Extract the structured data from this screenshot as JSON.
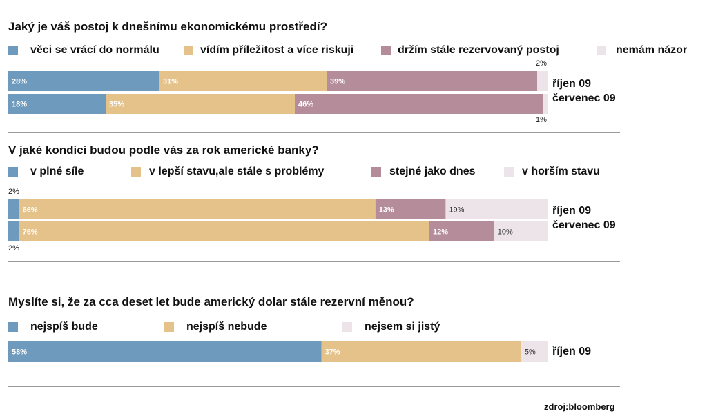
{
  "colors": {
    "blue": "#6e9bbd",
    "tan": "#e4c289",
    "mauve": "#b48c9a",
    "light": "#ece4e8"
  },
  "chart_data": [
    {
      "type": "bar",
      "orientation": "horizontal",
      "stacked": true,
      "title": "Jaký je váš postoj  k dnešnímu ekonomickému prostředí?",
      "legend": [
        "věci se vrácí do normálu",
        "vídím příležitost a více riskuji",
        "držím stále rezervovaný postoj",
        "nemám názor"
      ],
      "categories": [
        "říjen 09",
        "červenec 09"
      ],
      "series": [
        {
          "name": "věci se vrácí do normálu",
          "values": [
            28,
            18
          ],
          "labels": [
            "28%",
            "18%"
          ]
        },
        {
          "name": "vídím příležitost a více riskuji",
          "values": [
            31,
            35
          ],
          "labels": [
            "31%",
            "35%"
          ]
        },
        {
          "name": "držím stále rezervovaný postoj",
          "values": [
            39,
            46
          ],
          "labels": [
            "39%",
            "46%"
          ]
        },
        {
          "name": "nemám názor",
          "values": [
            2,
            1
          ],
          "labels": [
            "2%",
            "1%"
          ]
        }
      ]
    },
    {
      "type": "bar",
      "orientation": "horizontal",
      "stacked": true,
      "title": "V jaké kondici budou podle vás za rok americké banky?",
      "legend": [
        "v plné síle",
        "v lepší stavu,ale stále s problémy",
        "stejné jako dnes",
        "v horším stavu"
      ],
      "categories": [
        "říjen 09",
        "červenec 09"
      ],
      "series": [
        {
          "name": "v plné síle",
          "values": [
            2,
            2
          ],
          "labels": [
            "2%",
            "2%"
          ]
        },
        {
          "name": "v lepší stavu,ale stále s problémy",
          "values": [
            66,
            76
          ],
          "labels": [
            "66%",
            "76%"
          ]
        },
        {
          "name": "stejné jako dnes",
          "values": [
            13,
            12
          ],
          "labels": [
            "13%",
            "12%"
          ]
        },
        {
          "name": "v horším stavu",
          "values": [
            19,
            10
          ],
          "labels": [
            "19%",
            "10%"
          ]
        }
      ]
    },
    {
      "type": "bar",
      "orientation": "horizontal",
      "stacked": true,
      "title": "Myslíte si, že za cca deset let bude americký dolar stále rezervní měnou?",
      "legend": [
        "nejspíš bude",
        "nejspíš nebude",
        "nejsem si jistý"
      ],
      "categories": [
        "říjen 09"
      ],
      "series": [
        {
          "name": "nejspíš bude",
          "values": [
            58
          ],
          "labels": [
            "58%"
          ]
        },
        {
          "name": "nejspíš nebude",
          "values": [
            37
          ],
          "labels": [
            "37%"
          ]
        },
        {
          "name": "nejsem si jistý",
          "values": [
            5
          ],
          "labels": [
            "5%"
          ]
        }
      ]
    }
  ],
  "source": "zdroj:bloomberg"
}
